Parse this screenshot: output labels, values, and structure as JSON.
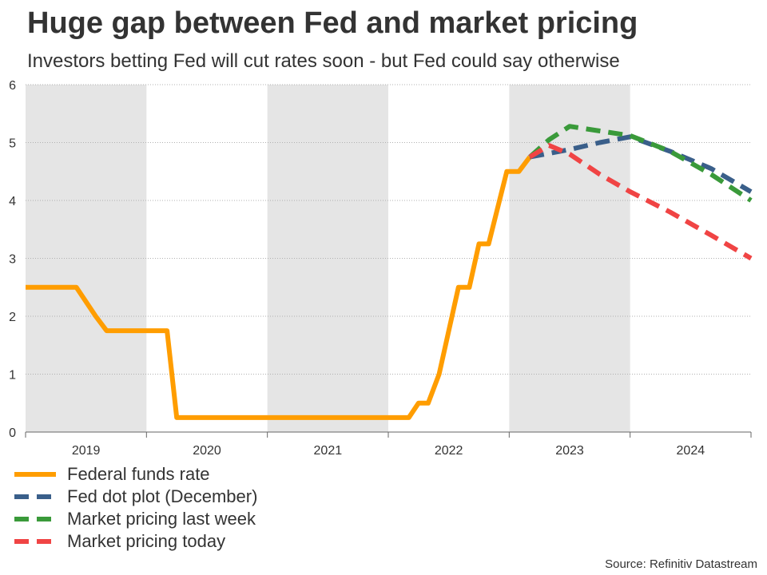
{
  "title": "Huge gap between Fed and market pricing",
  "subtitle": "Investors betting Fed will cut rates soon - but Fed could say otherwise",
  "source": "Source: Refinitiv Datastream",
  "colors": {
    "fed_funds": "#ff9d00",
    "dot_plot": "#3a5f8a",
    "market_last_week": "#3a9a3a",
    "market_today": "#f04444",
    "shade": "#e5e5e5",
    "grid": "#b0b0b0"
  },
  "chart_data": {
    "type": "line",
    "title": "Huge gap between Fed and market pricing",
    "subtitle": "Investors betting Fed will cut rates soon - but Fed could say otherwise",
    "xlabel": "",
    "ylabel": "",
    "x_ticks": [
      "2019",
      "2020",
      "2021",
      "2022",
      "2023",
      "2024"
    ],
    "xlim": [
      2019.0,
      2025.0
    ],
    "ylim": [
      0,
      6
    ],
    "y_ticks": [
      0,
      1,
      2,
      3,
      4,
      5,
      6
    ],
    "grid": "horizontal dotted",
    "shaded_years": [
      "2019",
      "2021",
      "2023"
    ],
    "legend_position": "bottom-left",
    "series": [
      {
        "name": "Federal funds rate",
        "style": "solid",
        "color": "#ff9d00",
        "points": [
          [
            2019.0,
            2.5
          ],
          [
            2019.42,
            2.5
          ],
          [
            2019.58,
            2.0
          ],
          [
            2019.67,
            1.75
          ],
          [
            2020.17,
            1.75
          ],
          [
            2020.25,
            0.25
          ],
          [
            2022.17,
            0.25
          ],
          [
            2022.25,
            0.5
          ],
          [
            2022.33,
            0.5
          ],
          [
            2022.42,
            1.0
          ],
          [
            2022.5,
            1.75
          ],
          [
            2022.58,
            2.5
          ],
          [
            2022.67,
            2.5
          ],
          [
            2022.75,
            3.25
          ],
          [
            2022.83,
            3.25
          ],
          [
            2022.92,
            4.0
          ],
          [
            2022.98,
            4.5
          ],
          [
            2023.08,
            4.5
          ],
          [
            2023.17,
            4.75
          ]
        ]
      },
      {
        "name": "Fed dot plot (December)",
        "style": "dashed",
        "color": "#3a5f8a",
        "points": [
          [
            2023.17,
            4.75
          ],
          [
            2023.5,
            4.88
          ],
          [
            2023.75,
            5.0
          ],
          [
            2024.0,
            5.1
          ],
          [
            2024.33,
            4.85
          ],
          [
            2024.67,
            4.55
          ],
          [
            2025.0,
            4.15
          ]
        ]
      },
      {
        "name": "Market pricing last week",
        "style": "dashed",
        "color": "#3a9a3a",
        "points": [
          [
            2023.17,
            4.75
          ],
          [
            2023.33,
            5.05
          ],
          [
            2023.5,
            5.28
          ],
          [
            2023.75,
            5.2
          ],
          [
            2024.0,
            5.12
          ],
          [
            2024.33,
            4.85
          ],
          [
            2024.67,
            4.45
          ],
          [
            2025.0,
            4.0
          ]
        ]
      },
      {
        "name": "Market pricing today",
        "style": "dashed",
        "color": "#f04444",
        "points": [
          [
            2023.17,
            4.75
          ],
          [
            2023.33,
            4.95
          ],
          [
            2023.5,
            4.8
          ],
          [
            2023.75,
            4.45
          ],
          [
            2024.0,
            4.15
          ],
          [
            2024.33,
            3.8
          ],
          [
            2024.67,
            3.4
          ],
          [
            2025.0,
            3.0
          ]
        ]
      }
    ]
  }
}
